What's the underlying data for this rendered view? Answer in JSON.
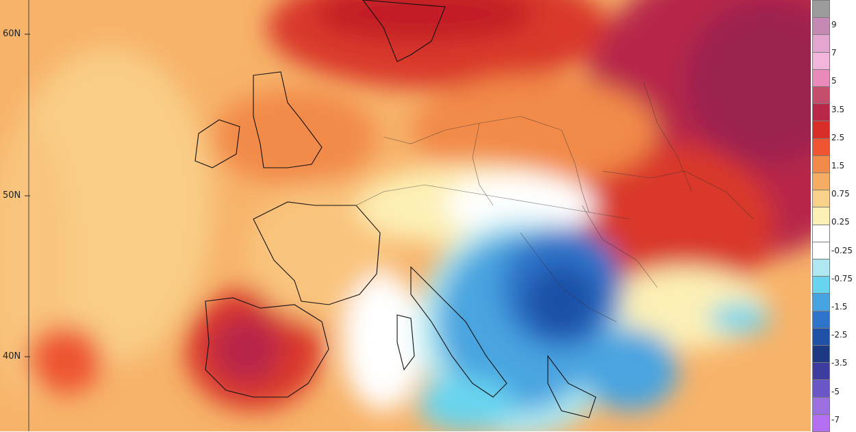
{
  "map": {
    "lat_labels": [
      "60N",
      "50N",
      "40N"
    ]
  },
  "legend": {
    "labels": [
      "9",
      "7",
      "5",
      "3.5",
      "2.5",
      "1.5",
      "0.75",
      "0.25",
      "-0.25",
      "-0.75",
      "-1.5",
      "-2.5",
      "-3.5",
      "-5",
      "-7"
    ],
    "colors": [
      "#9c9c9c",
      "#c48ab4",
      "#e3a6d1",
      "#f2b5dc",
      "#ea8ab8",
      "#c44e6b",
      "#b7284a",
      "#d92e28",
      "#ee5530",
      "#f28a4a",
      "#f6ad63",
      "#f9d28a",
      "#fdf0b6",
      "#ffffff",
      "#ffffff",
      "#aee9f2",
      "#69d4ee",
      "#48a4e0",
      "#2d73c9",
      "#1f51a8",
      "#1c3a83",
      "#3e3c9f",
      "#6b56c8",
      "#9a6fe0",
      "#b46ff2"
    ]
  }
}
